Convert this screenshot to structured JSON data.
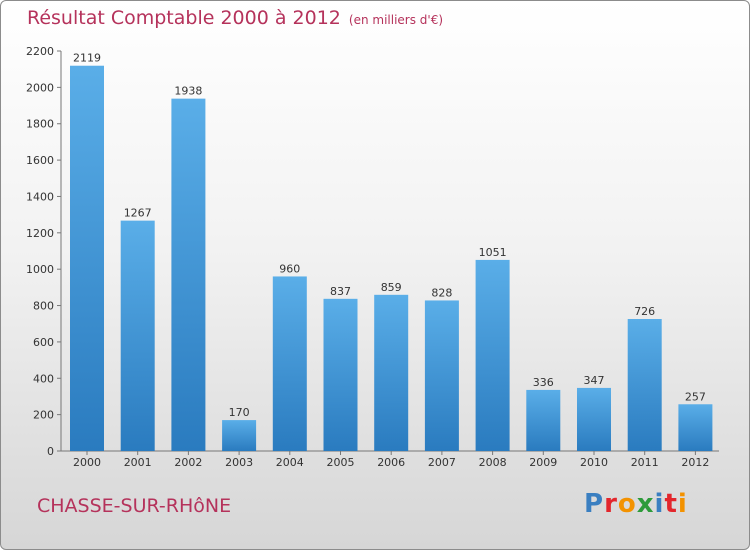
{
  "title": "Résultat Comptable 2000 à 2012",
  "subtitle": "(en milliers d'€)",
  "city": "CHASSE-SUR-RHôNE",
  "logo": {
    "text": "Proxiti",
    "letters": [
      {
        "ch": "P",
        "color": "#3a7fc1"
      },
      {
        "ch": "r",
        "color": "#e3262c"
      },
      {
        "ch": "o",
        "color": "#f39200"
      },
      {
        "ch": "x",
        "color": "#2d9b3a"
      },
      {
        "ch": "i",
        "color": "#3a7fc1"
      },
      {
        "ch": "t",
        "color": "#e3262c"
      },
      {
        "ch": "i",
        "color": "#f39200"
      }
    ]
  },
  "colors": {
    "bar_top": "#5aaee8",
    "bar_bottom": "#2a7bbf",
    "title": "#b5325b"
  },
  "chart_data": {
    "type": "bar",
    "title": "Résultat Comptable 2000 à 2012",
    "subtitle": "(en milliers d'€)",
    "categories": [
      "2000",
      "2001",
      "2002",
      "2003",
      "2004",
      "2005",
      "2006",
      "2007",
      "2008",
      "2009",
      "2010",
      "2011",
      "2012"
    ],
    "values": [
      2119,
      1267,
      1938,
      170,
      960,
      837,
      859,
      828,
      1051,
      336,
      347,
      726,
      257
    ],
    "ylim": [
      0,
      2200
    ],
    "yticks": [
      0,
      200,
      400,
      600,
      800,
      1000,
      1200,
      1400,
      1600,
      1800,
      2000,
      2200
    ],
    "xlabel": "",
    "ylabel": "",
    "grid": false,
    "legend": "none"
  }
}
